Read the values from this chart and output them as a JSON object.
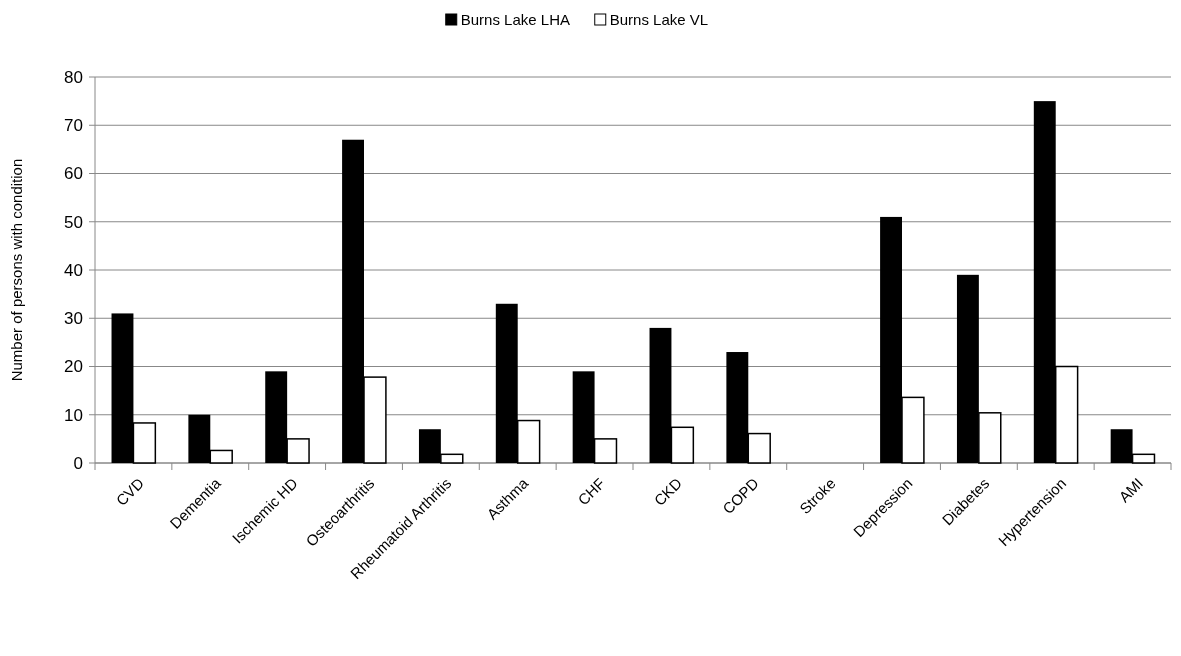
{
  "chart_data": {
    "type": "bar",
    "ylabel": "Number of persons with condition",
    "categories": [
      "CVD",
      "Dementia",
      "Ischemic HD",
      "Osteoarthritis",
      "Rheumatoid Arthritis",
      "Asthma",
      "CHF",
      "CKD",
      "COPD",
      "Stroke",
      "Depression",
      "Diabetes",
      "Hypertension",
      "AMI"
    ],
    "series": [
      {
        "name": "Burns Lake LHA",
        "color": "#000000",
        "values": [
          31,
          10,
          19,
          67,
          7,
          33,
          19,
          28,
          23,
          0,
          51,
          39,
          75,
          7
        ]
      },
      {
        "name": "Burns Lake VL",
        "color": "#ffffff",
        "values": [
          8.3,
          2.6,
          5,
          17.8,
          1.8,
          8.8,
          5,
          7.4,
          6.1,
          0,
          13.6,
          10.4,
          20,
          1.8
        ]
      }
    ],
    "ylim": [
      0,
      80
    ],
    "yticks": [
      0,
      10,
      20,
      30,
      40,
      50,
      60,
      70,
      80
    ],
    "grid": "y",
    "legend": "top"
  }
}
